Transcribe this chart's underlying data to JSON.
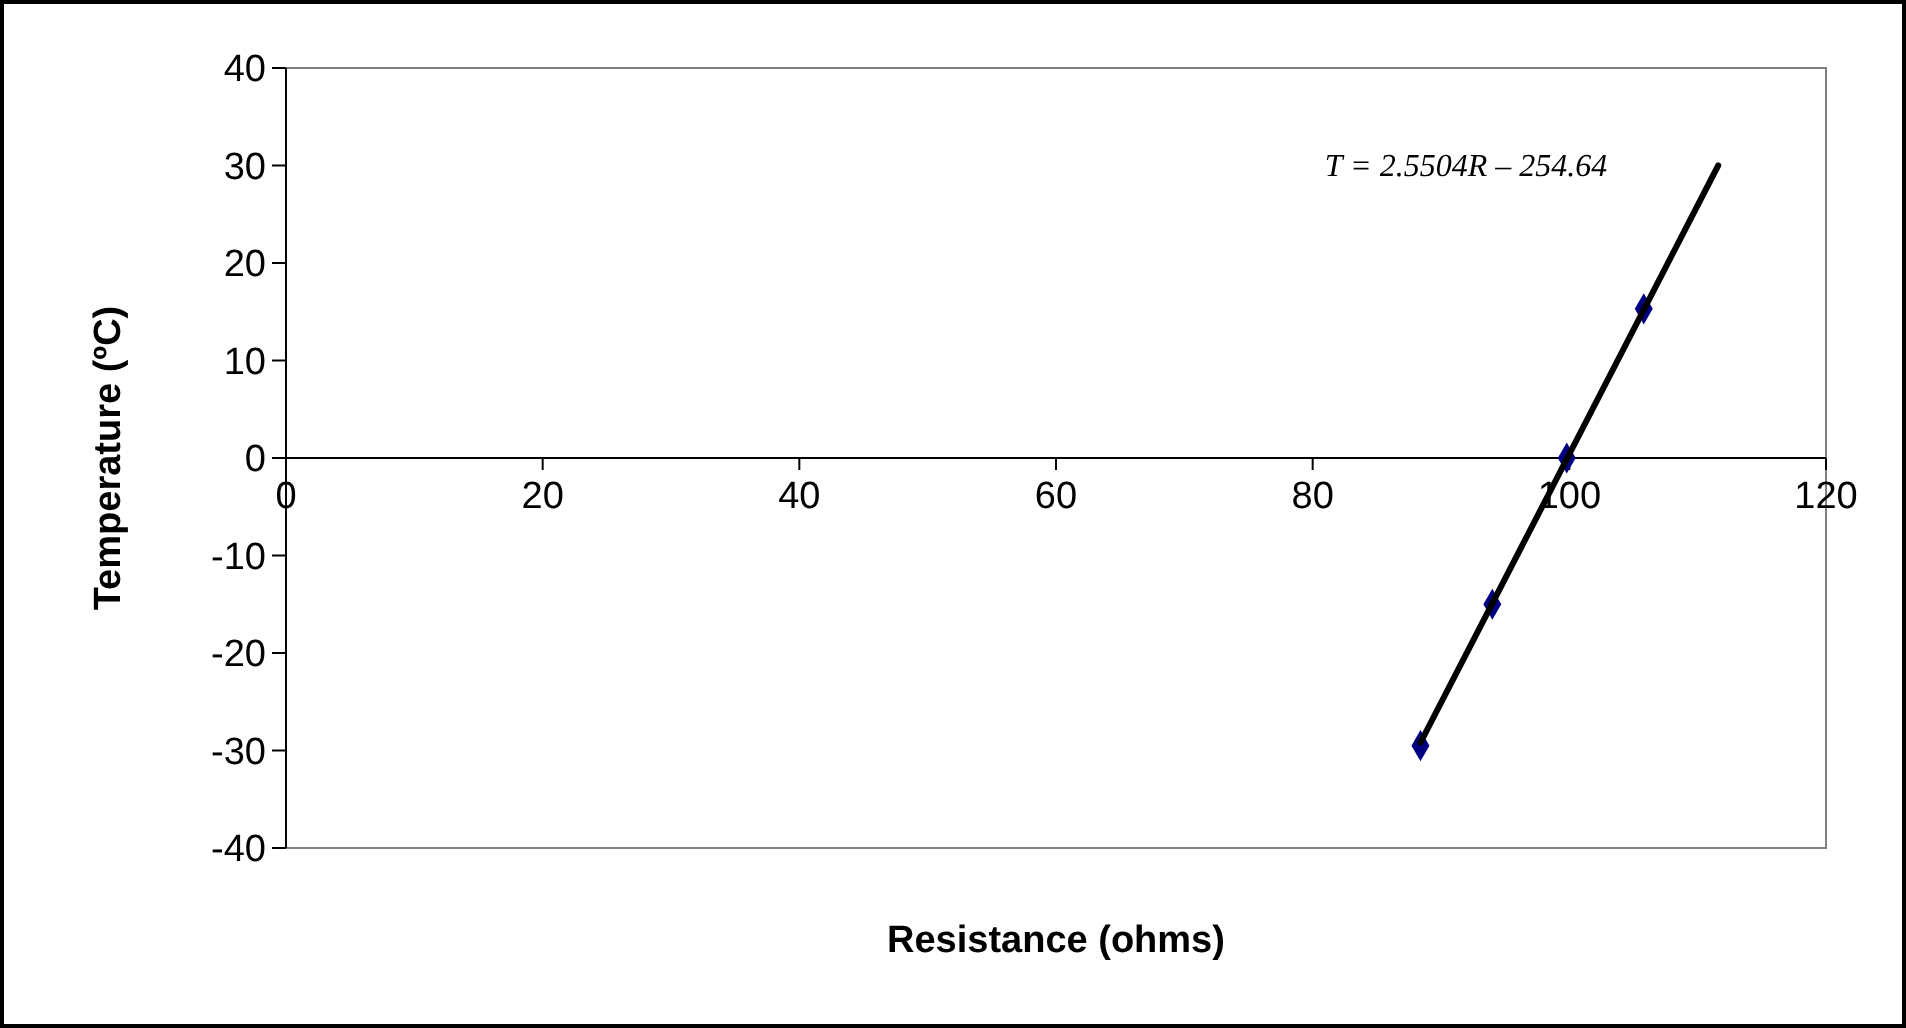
{
  "chart_data": {
    "type": "scatter",
    "xlabel": "Resistance (ohms)",
    "ylabel": "Temperature (ºC)",
    "xlim": [
      0,
      120
    ],
    "xticks": [
      0,
      20,
      40,
      60,
      80,
      100,
      120
    ],
    "ylim": [
      -40,
      40
    ],
    "yticks": [
      -40,
      -30,
      -20,
      -10,
      0,
      10,
      20,
      30,
      40
    ],
    "grid": false,
    "marker": "diamond",
    "series": [
      {
        "type": "scatter",
        "color": "#000080",
        "x": [
          88.4,
          94.0,
          99.8,
          105.8
        ],
        "values": [
          -29.5,
          -15.0,
          0,
          15.3
        ]
      },
      {
        "type": "line",
        "color": "#000000",
        "marker": "none",
        "line_style": "solid",
        "x": [
          88.4,
          111.6
        ],
        "values": [
          -29.2,
          30.0
        ]
      }
    ],
    "annotations": [
      "T = 2.5504R – 254.64"
    ]
  }
}
